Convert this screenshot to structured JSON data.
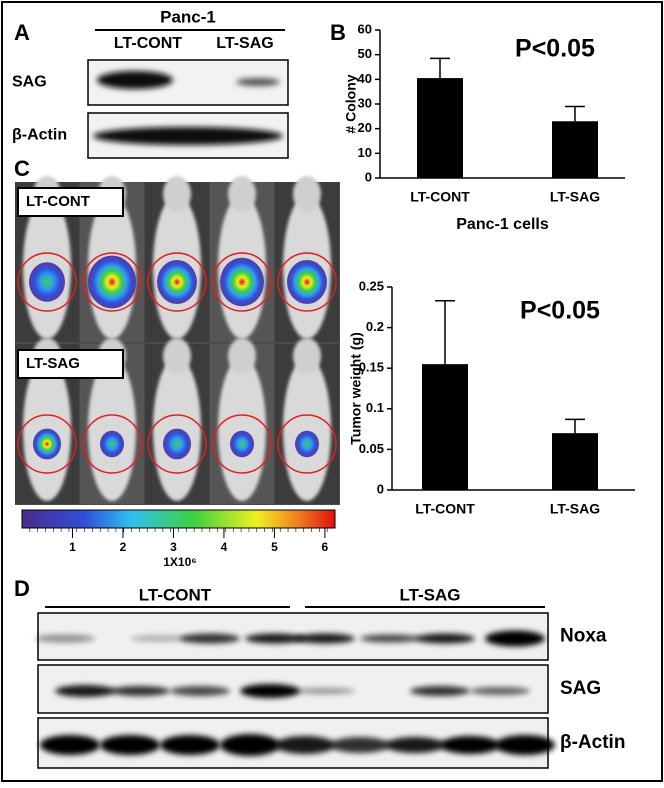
{
  "panel_labels": [
    "A",
    "B",
    "C",
    "D"
  ],
  "blot_a": {
    "group": "Panc-1",
    "lanes": [
      "LT-CONT",
      "LT-SAG"
    ],
    "rows": [
      "SAG",
      "β-Actin"
    ]
  },
  "imaging": {
    "groups": [
      "LT-CONT",
      "LT-SAG"
    ],
    "colorbar": {
      "lim": [
        0,
        6.2
      ],
      "ticks": [
        1,
        2,
        3,
        4,
        5,
        6
      ],
      "label": "1X10⁶"
    }
  },
  "blot_d": {
    "lanes": [
      "LT-CONT",
      "LT-SAG"
    ],
    "rows": [
      "Noxa",
      "SAG",
      "β-Actin"
    ]
  },
  "chart_data": [
    {
      "type": "bar",
      "annotation": "P<0.05",
      "ylabel": "# Colony",
      "xlabel": "Panc-1 cells",
      "categories": [
        "LT-CONT",
        "LT-SAG"
      ],
      "values": [
        40.5,
        23
      ],
      "errors": [
        8,
        6
      ],
      "color": "#000000",
      "ylim": [
        0,
        60
      ],
      "yticks": [
        0,
        10,
        20,
        30,
        40,
        50,
        60
      ]
    },
    {
      "type": "bar",
      "annotation": "P<0.05",
      "ylabel": "Tumor weight (g)",
      "categories": [
        "LT-CONT",
        "LT-SAG"
      ],
      "values": [
        0.155,
        0.07
      ],
      "errors": [
        0.078,
        0.017
      ],
      "color": "#000000",
      "ylim": [
        0,
        0.25
      ],
      "yticks": [
        0,
        0.05,
        0.1,
        0.15,
        0.2,
        0.25
      ]
    }
  ]
}
